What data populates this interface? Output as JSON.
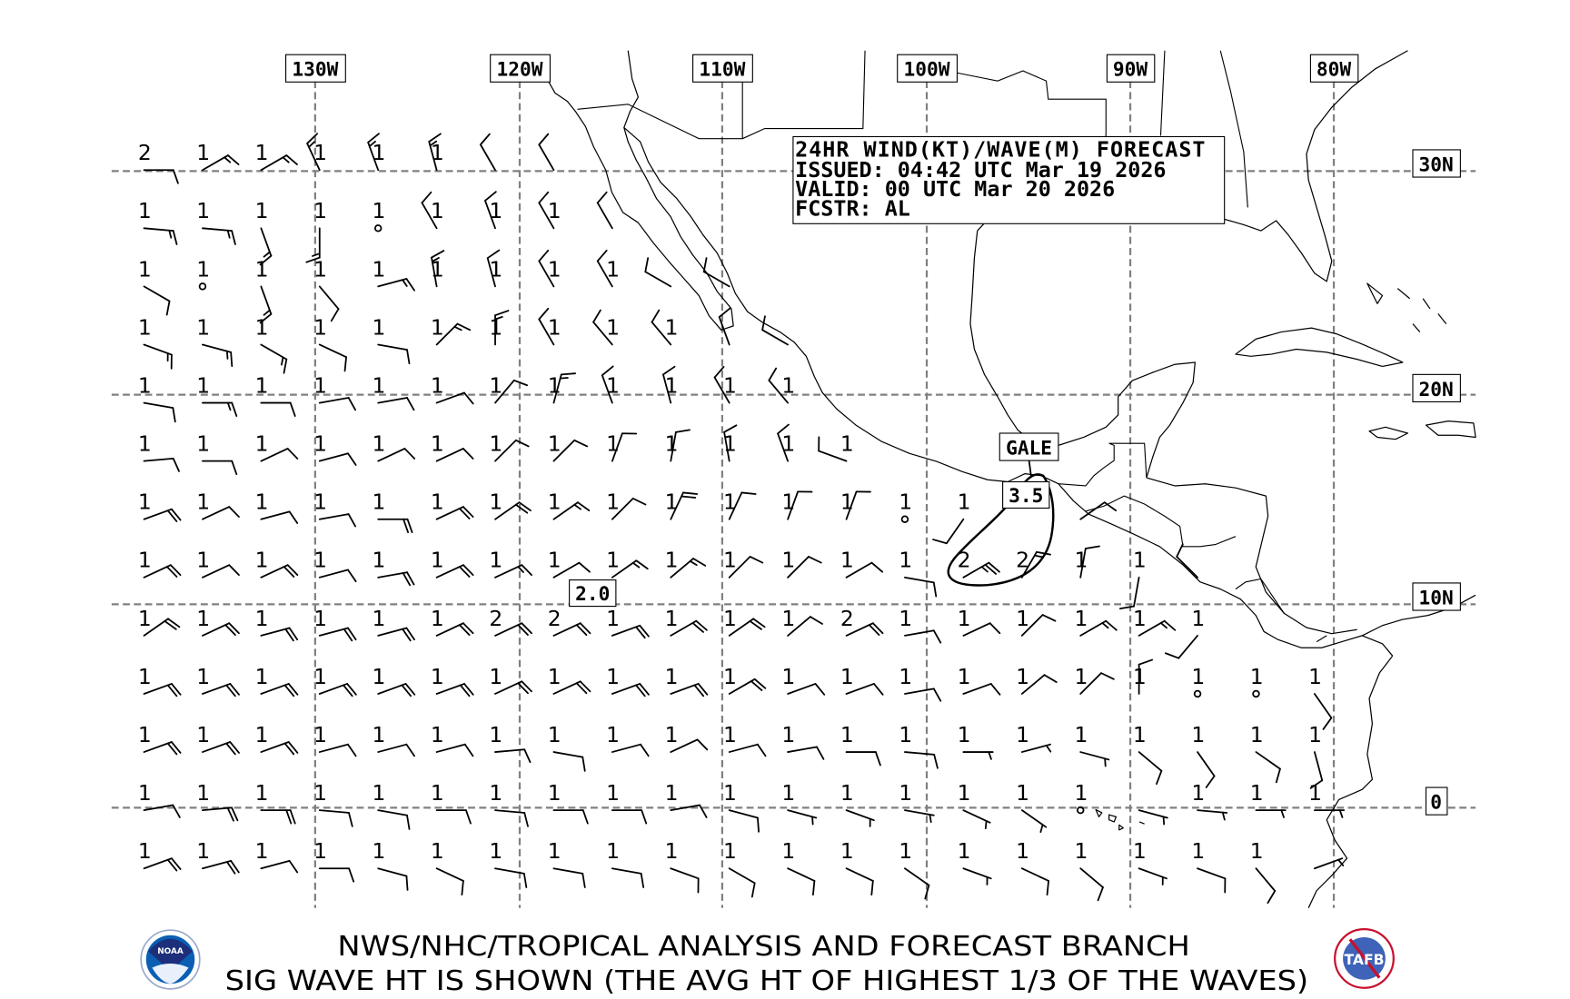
{
  "header": {
    "line1": "24HR WIND(KT)/WAVE(M) FORECAST",
    "line2": "ISSUED: 04:42 UTC Mar 19 2026",
    "line3": "VALID: 00 UTC Mar 20 2026",
    "line4": "FCSTR: AL"
  },
  "longitude_labels": [
    "130W",
    "120W",
    "110W",
    "100W",
    "90W",
    "80W"
  ],
  "latitude_labels": [
    "30N",
    "20N",
    "10N",
    "0"
  ],
  "annotations": {
    "gale": "GALE",
    "gale_max_wave": "3.5",
    "wave_max_label": "2.0"
  },
  "footer": {
    "line1": "NWS/NHC/TROPICAL ANALYSIS AND FORECAST BRANCH",
    "line2": "SIG WAVE HT IS SHOWN (THE AVG HT OF HIGHEST 1/3 OF THE WAVES)"
  },
  "logos": {
    "noaa": "NOAA",
    "tafb": "TAFB"
  },
  "colors": {
    "grid": "#808080",
    "noaa_blue": "#0a5fb4",
    "noaa_navy": "#1d2f7a",
    "tafb_red": "#c8102e"
  },
  "stations_format": "rows north to south; each point = [wave height m, wind direction deg, wind speed kt]; speed 0 = calm",
  "stations": [
    [
      [
        2,
        90,
        10
      ],
      [
        1,
        60,
        15
      ],
      [
        1,
        60,
        15
      ],
      [
        1,
        335,
        15
      ],
      [
        1,
        340,
        15
      ],
      [
        1,
        345,
        15
      ],
      [
        "",
        330,
        10
      ],
      [
        "",
        330,
        10
      ]
    ],
    [
      [
        1,
        95,
        15
      ],
      [
        1,
        95,
        15
      ],
      [
        1,
        160,
        15
      ],
      [
        1,
        180,
        15
      ],
      [
        1,
        0,
        0
      ],
      [
        1,
        330,
        10
      ],
      [
        1,
        340,
        10
      ],
      [
        1,
        330,
        10
      ],
      [
        "",
        330,
        10
      ]
    ],
    [
      [
        1,
        120,
        10
      ],
      [
        1,
        0,
        0
      ],
      [
        1,
        160,
        15
      ],
      [
        1,
        140,
        10
      ],
      [
        1,
        75,
        15
      ],
      [
        1,
        350,
        15
      ],
      [
        1,
        345,
        10
      ],
      [
        1,
        330,
        10
      ],
      [
        1,
        330,
        10
      ],
      [
        "",
        300,
        10
      ],
      [
        "",
        300,
        10
      ]
    ],
    [
      [
        1,
        110,
        15
      ],
      [
        1,
        105,
        15
      ],
      [
        1,
        120,
        15
      ],
      [
        1,
        115,
        10
      ],
      [
        1,
        100,
        10
      ],
      [
        1,
        45,
        15
      ],
      [
        1,
        0,
        15
      ],
      [
        1,
        330,
        10
      ],
      [
        1,
        320,
        10
      ],
      [
        1,
        320,
        10
      ],
      [
        "",
        340,
        10
      ],
      [
        "",
        300,
        10
      ]
    ],
    [
      [
        1,
        100,
        10
      ],
      [
        1,
        90,
        15
      ],
      [
        1,
        90,
        10
      ],
      [
        1,
        80,
        10
      ],
      [
        1,
        80,
        10
      ],
      [
        1,
        70,
        10
      ],
      [
        1,
        40,
        10
      ],
      [
        1,
        15,
        15
      ],
      [
        1,
        340,
        10
      ],
      [
        1,
        345,
        10
      ],
      [
        1,
        330,
        10
      ],
      [
        1,
        320,
        10
      ]
    ],
    [
      [
        1,
        85,
        10
      ],
      [
        1,
        90,
        10
      ],
      [
        1,
        65,
        10
      ],
      [
        1,
        75,
        10
      ],
      [
        1,
        65,
        10
      ],
      [
        1,
        65,
        10
      ],
      [
        1,
        45,
        10
      ],
      [
        1,
        45,
        10
      ],
      [
        1,
        20,
        10
      ],
      [
        1,
        10,
        10
      ],
      [
        1,
        350,
        10
      ],
      [
        1,
        340,
        10
      ],
      [
        1,
        290,
        10
      ]
    ],
    [
      [
        1,
        70,
        20
      ],
      [
        1,
        65,
        10
      ],
      [
        1,
        75,
        10
      ],
      [
        1,
        80,
        10
      ],
      [
        1,
        90,
        20
      ],
      [
        1,
        65,
        20
      ],
      [
        1,
        55,
        20
      ],
      [
        1,
        55,
        15
      ],
      [
        1,
        45,
        10
      ],
      [
        1,
        25,
        20
      ],
      [
        1,
        25,
        10
      ],
      [
        1,
        20,
        10
      ],
      [
        1,
        20,
        10
      ],
      [
        1,
        0,
        0
      ],
      [
        1,
        215,
        10
      ],
      null,
      [
        "",
        55,
        10
      ]
    ],
    [
      [
        1,
        65,
        20
      ],
      [
        1,
        65,
        10
      ],
      [
        1,
        65,
        20
      ],
      [
        1,
        75,
        10
      ],
      [
        1,
        80,
        20
      ],
      [
        1,
        65,
        20
      ],
      [
        1,
        65,
        15
      ],
      [
        1,
        60,
        10
      ],
      [
        1,
        55,
        15
      ],
      [
        1,
        50,
        15
      ],
      [
        1,
        45,
        10
      ],
      [
        1,
        45,
        10
      ],
      [
        1,
        60,
        10
      ],
      [
        1,
        100,
        10
      ],
      [
        2,
        60,
        25
      ],
      [
        2,
        30,
        15
      ],
      [
        1,
        10,
        10
      ],
      [
        1,
        190,
        10
      ],
      [
        "",
        315,
        10
      ]
    ],
    [
      [
        1,
        55,
        20
      ],
      [
        1,
        65,
        20
      ],
      [
        1,
        75,
        20
      ],
      [
        1,
        75,
        20
      ],
      [
        1,
        75,
        20
      ],
      [
        1,
        65,
        20
      ],
      [
        2,
        65,
        20
      ],
      [
        2,
        65,
        20
      ],
      [
        1,
        70,
        20
      ],
      [
        1,
        60,
        20
      ],
      [
        1,
        55,
        20
      ],
      [
        1,
        50,
        10
      ],
      [
        2,
        65,
        20
      ],
      [
        1,
        80,
        10
      ],
      [
        1,
        65,
        10
      ],
      [
        1,
        45,
        10
      ],
      [
        1,
        60,
        15
      ],
      [
        1,
        60,
        15
      ],
      [
        1,
        220,
        10
      ]
    ],
    [
      [
        1,
        70,
        20
      ],
      [
        1,
        70,
        20
      ],
      [
        1,
        70,
        20
      ],
      [
        1,
        70,
        20
      ],
      [
        1,
        70,
        20
      ],
      [
        1,
        70,
        20
      ],
      [
        1,
        65,
        20
      ],
      [
        1,
        65,
        20
      ],
      [
        1,
        70,
        20
      ],
      [
        1,
        70,
        20
      ],
      [
        1,
        60,
        20
      ],
      [
        1,
        70,
        10
      ],
      [
        1,
        70,
        10
      ],
      [
        1,
        80,
        10
      ],
      [
        1,
        70,
        10
      ],
      [
        1,
        50,
        10
      ],
      [
        1,
        45,
        10
      ],
      [
        1,
        0,
        10
      ],
      [
        1,
        0,
        0
      ],
      [
        1,
        0,
        0
      ],
      [
        1,
        145,
        10
      ]
    ],
    [
      [
        1,
        70,
        20
      ],
      [
        1,
        70,
        20
      ],
      [
        1,
        70,
        20
      ],
      [
        1,
        75,
        10
      ],
      [
        1,
        75,
        10
      ],
      [
        1,
        75,
        10
      ],
      [
        1,
        85,
        10
      ],
      [
        1,
        100,
        10
      ],
      [
        1,
        75,
        10
      ],
      [
        1,
        65,
        10
      ],
      [
        1,
        75,
        10
      ],
      [
        1,
        80,
        10
      ],
      [
        1,
        90,
        10
      ],
      [
        1,
        95,
        10
      ],
      [
        1,
        90,
        5
      ],
      [
        1,
        75,
        5
      ],
      [
        1,
        105,
        5
      ],
      [
        1,
        130,
        10
      ],
      [
        1,
        145,
        10
      ],
      [
        1,
        125,
        10
      ],
      [
        1,
        165,
        10
      ]
    ],
    [
      [
        1,
        80,
        10
      ],
      [
        1,
        85,
        20
      ],
      [
        1,
        90,
        20
      ],
      [
        1,
        95,
        10
      ],
      [
        1,
        100,
        10
      ],
      [
        1,
        90,
        10
      ],
      [
        1,
        95,
        10
      ],
      [
        1,
        90,
        10
      ],
      [
        1,
        90,
        10
      ],
      [
        1,
        80,
        10
      ],
      [
        1,
        105,
        10
      ],
      [
        1,
        105,
        5
      ],
      [
        1,
        110,
        5
      ],
      [
        1,
        100,
        5
      ],
      [
        1,
        115,
        5
      ],
      [
        1,
        125,
        5
      ],
      [
        1,
        0,
        0
      ],
      [
        "",
        105,
        5
      ],
      [
        1,
        95,
        5
      ],
      [
        1,
        90,
        5
      ],
      [
        1,
        90,
        5
      ]
    ],
    [
      [
        1,
        70,
        20
      ],
      [
        1,
        75,
        20
      ],
      [
        1,
        75,
        10
      ],
      [
        1,
        90,
        10
      ],
      [
        1,
        105,
        10
      ],
      [
        1,
        115,
        10
      ],
      [
        1,
        100,
        10
      ],
      [
        1,
        100,
        10
      ],
      [
        1,
        100,
        10
      ],
      [
        1,
        110,
        10
      ],
      [
        1,
        120,
        10
      ],
      [
        1,
        115,
        10
      ],
      [
        1,
        115,
        10
      ],
      [
        1,
        125,
        10
      ],
      [
        1,
        110,
        5
      ],
      [
        1,
        115,
        10
      ],
      [
        1,
        130,
        10
      ],
      [
        1,
        110,
        5
      ],
      [
        1,
        110,
        10
      ],
      [
        1,
        140,
        10
      ],
      [
        "",
        70,
        5
      ]
    ]
  ]
}
